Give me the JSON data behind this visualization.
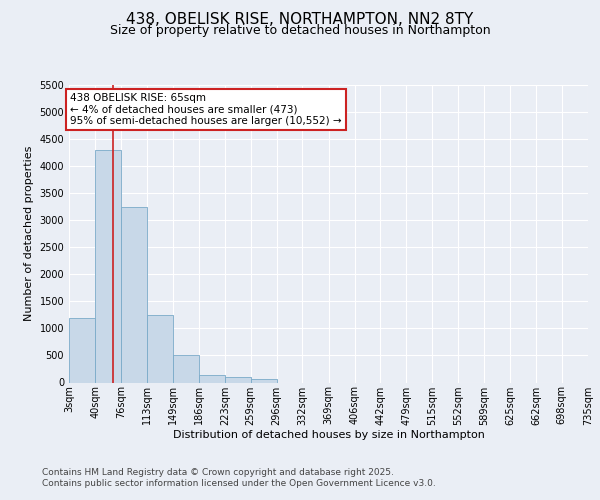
{
  "title_line1": "438, OBELISK RISE, NORTHAMPTON, NN2 8TY",
  "title_line2": "Size of property relative to detached houses in Northampton",
  "xlabel": "Distribution of detached houses by size in Northampton",
  "ylabel": "Number of detached properties",
  "bins": [
    3,
    40,
    76,
    113,
    149,
    186,
    223,
    259,
    296,
    332,
    369,
    406,
    442,
    479,
    515,
    552,
    589,
    625,
    662,
    698,
    735
  ],
  "bin_labels": [
    "3sqm",
    "40sqm",
    "76sqm",
    "113sqm",
    "149sqm",
    "186sqm",
    "223sqm",
    "259sqm",
    "296sqm",
    "332sqm",
    "369sqm",
    "406sqm",
    "442sqm",
    "479sqm",
    "515sqm",
    "552sqm",
    "589sqm",
    "625sqm",
    "662sqm",
    "698sqm",
    "735sqm"
  ],
  "values": [
    1200,
    4300,
    3250,
    1250,
    500,
    140,
    110,
    70,
    0,
    0,
    0,
    0,
    0,
    0,
    0,
    0,
    0,
    0,
    0,
    0
  ],
  "bar_color": "#c8d8e8",
  "bar_edge_color": "#7aaac8",
  "vline_x": 65,
  "vline_color": "#cc2222",
  "annotation_text": "438 OBELISK RISE: 65sqm\n← 4% of detached houses are smaller (473)\n95% of semi-detached houses are larger (10,552) →",
  "annotation_box_color": "#ffffff",
  "annotation_box_edge": "#cc2222",
  "ylim": [
    0,
    5500
  ],
  "yticks": [
    0,
    500,
    1000,
    1500,
    2000,
    2500,
    3000,
    3500,
    4000,
    4500,
    5000,
    5500
  ],
  "background_color": "#eaeef5",
  "plot_bg_color": "#eaeef5",
  "footer_text": "Contains HM Land Registry data © Crown copyright and database right 2025.\nContains public sector information licensed under the Open Government Licence v3.0.",
  "title_fontsize": 11,
  "subtitle_fontsize": 9,
  "axis_label_fontsize": 8,
  "tick_fontsize": 7,
  "footer_fontsize": 6.5,
  "annot_fontsize": 7.5
}
